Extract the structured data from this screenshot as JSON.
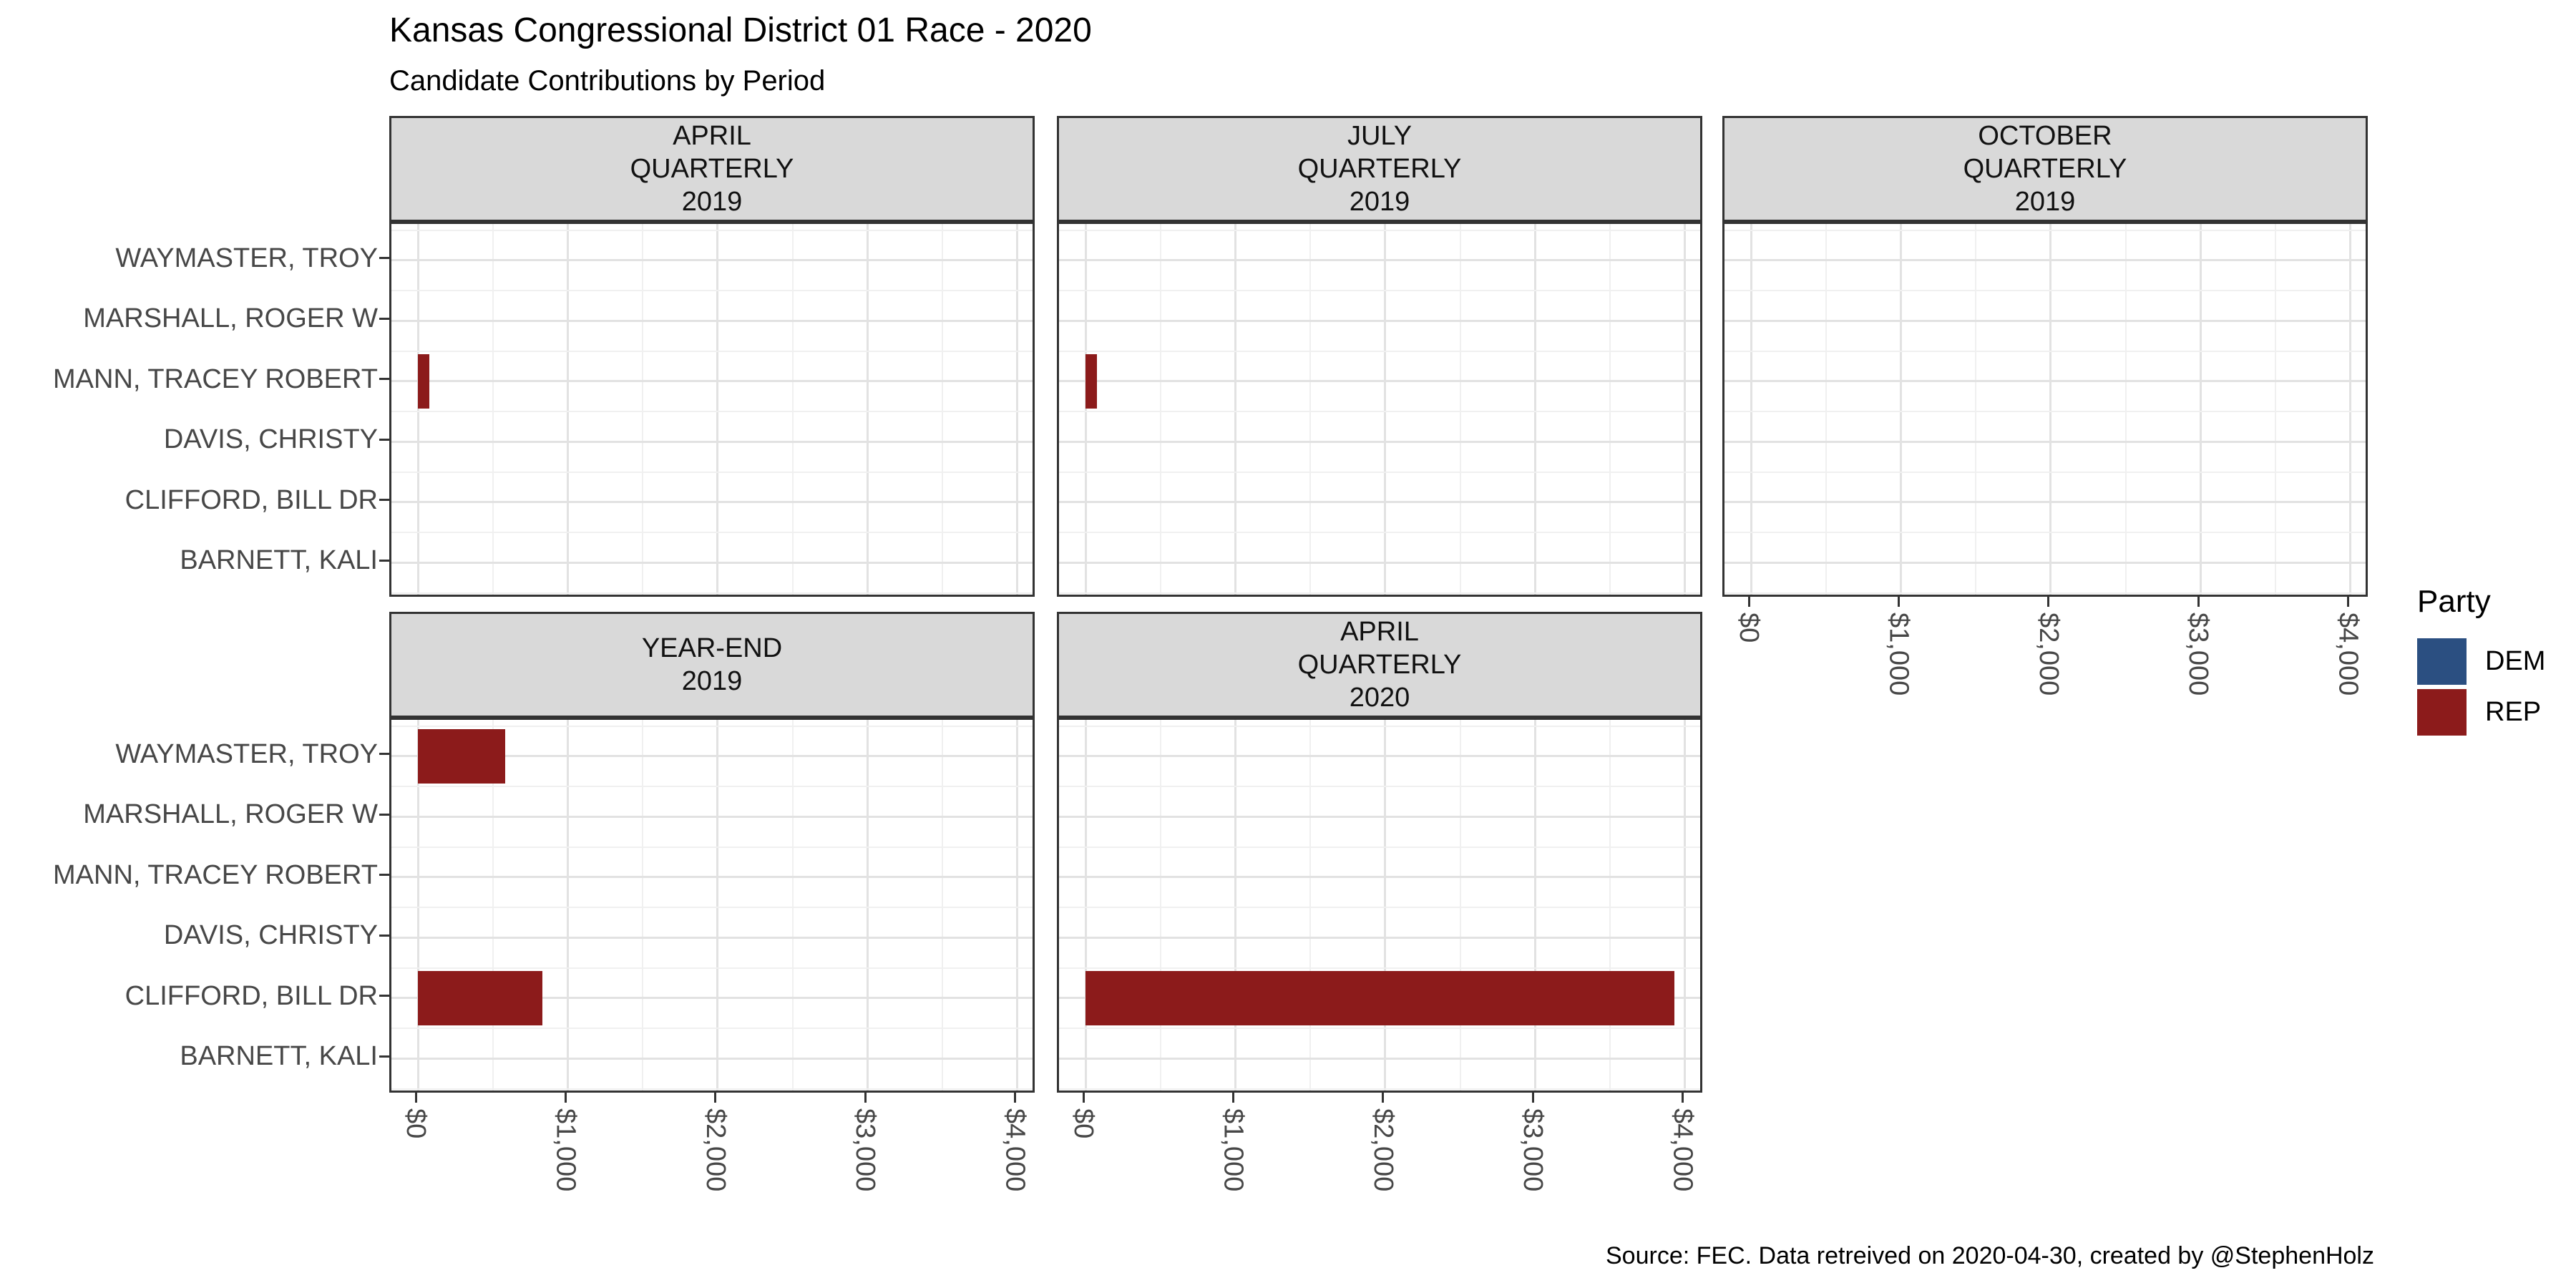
{
  "chart_data": {
    "type": "bar",
    "orientation": "horizontal",
    "title": "Kansas Congressional District 01 Race - 2020",
    "subtitle": "Candidate Contributions by Period",
    "caption": "Source: FEC. Data retreived on 2020-04-30, created by @StephenHolz",
    "xlabel": "",
    "ylabel": "",
    "xlim": [
      0,
      4300
    ],
    "grid": true,
    "candidates": [
      "WAYMASTER, TROY",
      "MARSHALL, ROGER W",
      "MANN, TRACEY ROBERT",
      "DAVIS, CHRISTY",
      "CLIFFORD, BILL DR",
      "BARNETT, KALI"
    ],
    "x_axis": {
      "ticks": [
        {
          "label": "$0",
          "value": 0
        },
        {
          "label": "$1,000",
          "value": 1000
        },
        {
          "label": "$2,000",
          "value": 2000
        },
        {
          "label": "$3,000",
          "value": 3000
        },
        {
          "label": "$4,000",
          "value": 4000
        }
      ],
      "minor_ticks": [
        500,
        1500,
        2500,
        3500
      ]
    },
    "facets": [
      {
        "period": [
          "APRIL",
          "QUARTERLY",
          "2019"
        ],
        "row": 0,
        "col": 0,
        "x_axis_below": false,
        "bars": [
          {
            "candidate": "MANN, TRACEY ROBERT",
            "party": "REP",
            "value": 75
          }
        ]
      },
      {
        "period": [
          "JULY",
          "QUARTERLY",
          "2019"
        ],
        "row": 0,
        "col": 1,
        "x_axis_below": false,
        "bars": [
          {
            "candidate": "MANN, TRACEY ROBERT",
            "party": "REP",
            "value": 75
          }
        ]
      },
      {
        "period": [
          "OCTOBER",
          "QUARTERLY",
          "2019"
        ],
        "row": 0,
        "col": 2,
        "x_axis_below": true,
        "bars": []
      },
      {
        "period": [
          "YEAR-END",
          "2019"
        ],
        "row": 1,
        "col": 0,
        "x_axis_below": true,
        "bars": [
          {
            "candidate": "WAYMASTER, TROY",
            "party": "REP",
            "value": 580
          },
          {
            "candidate": "CLIFFORD, BILL DR",
            "party": "REP",
            "value": 830
          }
        ]
      },
      {
        "period": [
          "APRIL",
          "QUARTERLY",
          "2020"
        ],
        "row": 1,
        "col": 1,
        "x_axis_below": true,
        "bars": [
          {
            "candidate": "CLIFFORD, BILL DR",
            "party": "REP",
            "value": 3930
          }
        ]
      }
    ],
    "party_colors": {
      "DEM": "#2B4F81",
      "REP": "#8C1B1B"
    },
    "legend": {
      "title": "Party",
      "position": "right",
      "entries": [
        {
          "label": "DEM",
          "color": "#2B4F81"
        },
        {
          "label": "REP",
          "color": "#8C1B1B"
        }
      ]
    },
    "style_colors": {
      "strip_background": "#D9D9D9",
      "panel_border": "#333333",
      "grid_major": "#E2E2E2",
      "grid_minor": "#F0F0F0",
      "axis_text": "#474747"
    }
  }
}
